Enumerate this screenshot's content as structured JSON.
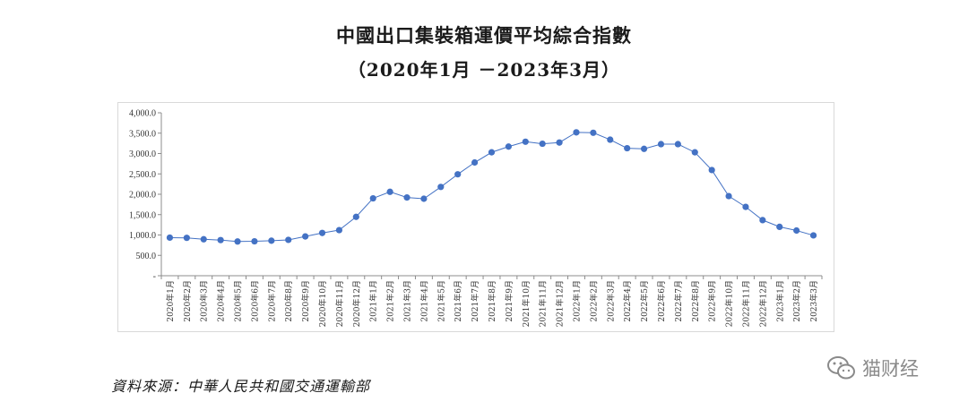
{
  "title": {
    "line1": "中國出口集裝箱運價平均綜合指數",
    "line2": "（2020年1月 －2023年3月）"
  },
  "source_note": "資料來源：中華人民共和國交通運輸部",
  "watermark": {
    "text": "猫财经",
    "icon": "wechat-icon"
  },
  "colors": {
    "series": "#4472c4",
    "axis": "#8c8c8c",
    "frame": "#d9d9d9"
  },
  "chart_data": {
    "type": "line",
    "ylim": [
      0,
      4000
    ],
    "y_ticks": [
      {
        "value": 0,
        "label": "-"
      },
      {
        "value": 500,
        "label": "500.0"
      },
      {
        "value": 1000,
        "label": "1,000.0"
      },
      {
        "value": 1500,
        "label": "1,500.0"
      },
      {
        "value": 2000,
        "label": "2,000.0"
      },
      {
        "value": 2500,
        "label": "2,500.0"
      },
      {
        "value": 3000,
        "label": "3,000.0"
      },
      {
        "value": 3500,
        "label": "3,500.0"
      },
      {
        "value": 4000,
        "label": "4,000.0"
      }
    ],
    "grid": false,
    "legend": "none",
    "categories": [
      "2020年1月",
      "2020年2月",
      "2020年3月",
      "2020年4月",
      "2020年5月",
      "2020年6月",
      "2020年7月",
      "2020年8月",
      "2020年9月",
      "2020年10月",
      "2020年11月",
      "2020年12月",
      "2021年1月",
      "2021年2月",
      "2021年3月",
      "2021年4月",
      "2021年5月",
      "2021年6月",
      "2021年7月",
      "2021年8月",
      "2021年9月",
      "2021年10月",
      "2021年11月",
      "2021年12月",
      "2022年1月",
      "2022年2月",
      "2022年3月",
      "2022年4月",
      "2022年5月",
      "2022年6月",
      "2022年7月",
      "2022年8月",
      "2022年9月",
      "2022年10月",
      "2022年11月",
      "2022年12月",
      "2023年1月",
      "2023年2月",
      "2023年3月"
    ],
    "values": [
      935,
      930,
      895,
      875,
      840,
      845,
      860,
      880,
      965,
      1050,
      1120,
      1445,
      1900,
      2060,
      1920,
      1890,
      2180,
      2490,
      2780,
      3030,
      3170,
      3290,
      3240,
      3270,
      3520,
      3510,
      3340,
      3130,
      3115,
      3230,
      3230,
      3030,
      2595,
      1955,
      1690,
      1365,
      1200,
      1110,
      990
    ]
  }
}
